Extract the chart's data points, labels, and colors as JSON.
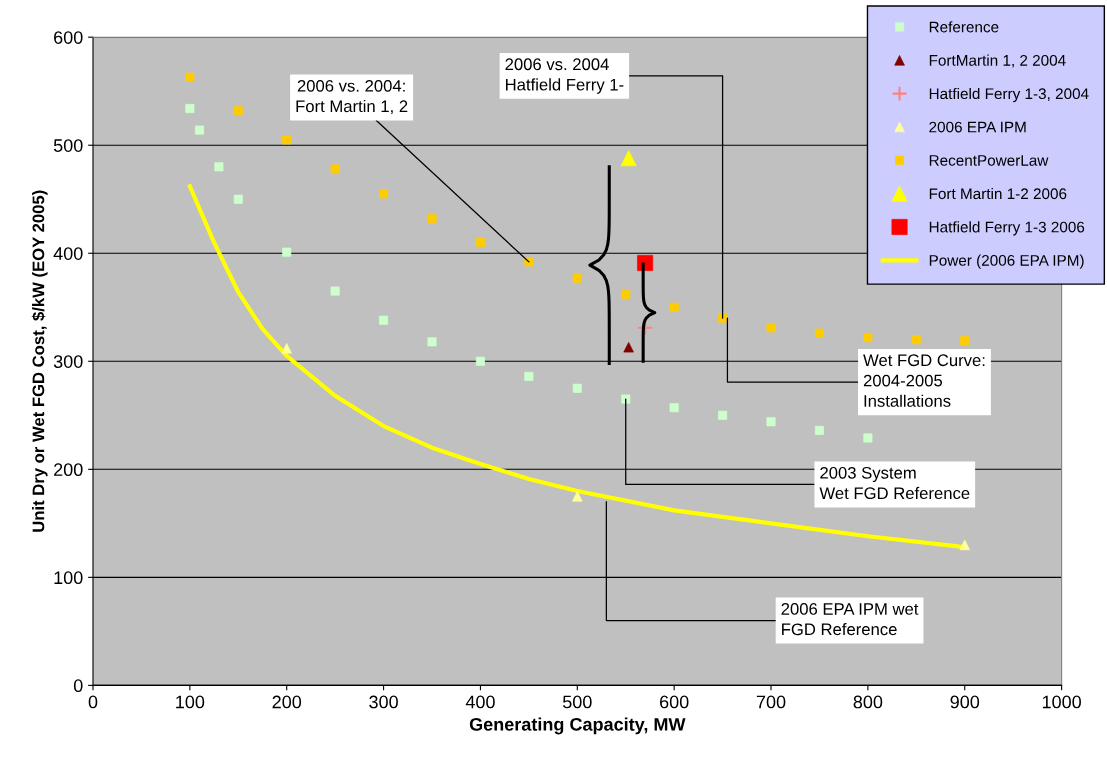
{
  "chart_data": {
    "type": "scatter",
    "xlabel": "Generating Capacity, MW",
    "ylabel": "Unit Dry or Wet FGD Cost, $/kW (EOY 2005)",
    "xlim": [
      0,
      1000
    ],
    "xticks": [
      0,
      100,
      200,
      300,
      400,
      500,
      600,
      700,
      800,
      900,
      1000
    ],
    "ylim": [
      0,
      600
    ],
    "yticks": [
      0,
      100,
      200,
      300,
      400,
      500,
      600
    ],
    "grid": "y",
    "legend": "top right",
    "series": [
      {
        "name": "Reference",
        "marker": "square",
        "color": "#ccffcc",
        "x": [
          100,
          110,
          130,
          150,
          200,
          250,
          300,
          350,
          400,
          450,
          500,
          550,
          600,
          650,
          700,
          750,
          800
        ],
        "values": [
          534,
          514,
          480,
          450,
          401,
          365,
          338,
          318,
          300,
          286,
          275,
          265,
          257,
          250,
          244,
          236,
          229
        ]
      },
      {
        "name": "FortMartin 1, 2 2004",
        "marker": "triangle",
        "color": "#800000",
        "x": [
          553
        ],
        "values": [
          313
        ]
      },
      {
        "name": "Hatfield Ferry 1-3, 2004",
        "marker": "cross",
        "color": "#ff8080",
        "x": [
          570
        ],
        "values": [
          331
        ]
      },
      {
        "name": "2006 EPA IPM",
        "marker": "triangle",
        "color": "#ffff99",
        "x": [
          200,
          500,
          900
        ],
        "values": [
          312,
          175,
          130
        ]
      },
      {
        "name": "RecentPowerLaw",
        "marker": "square",
        "color": "#ffcc00",
        "x": [
          100,
          150,
          200,
          250,
          300,
          350,
          400,
          450,
          500,
          550,
          600,
          650,
          700,
          750,
          800,
          850,
          900
        ],
        "values": [
          563,
          532,
          505,
          478,
          455,
          432,
          410,
          392,
          377,
          362,
          350,
          340,
          331,
          326,
          322,
          320,
          319
        ]
      },
      {
        "name": "Fort Martin 1-2 2006",
        "marker": "triangle",
        "color": "#ffff00",
        "x": [
          553
        ],
        "values": [
          488
        ]
      },
      {
        "name": "Hatfield Ferry 1-3 2006",
        "marker": "square",
        "color": "#ff0000",
        "x": [
          570
        ],
        "values": [
          391
        ]
      },
      {
        "name": "Power (2006 EPA IPM)",
        "type": "line",
        "marker": "none",
        "line_style": "solid",
        "color": "#ffff00",
        "x": [
          100,
          125,
          150,
          175,
          200,
          250,
          300,
          350,
          400,
          450,
          500,
          600,
          700,
          800,
          900
        ],
        "values": [
          462,
          410,
          364,
          330,
          305,
          268,
          240,
          220,
          205,
          191,
          180,
          162,
          150,
          138,
          128
        ]
      }
    ],
    "annotations": [
      {
        "text": "2006 vs. 2004:\nFort Martin 1, 2",
        "x": 450,
        "y": 392
      },
      {
        "text": "2006 vs. 2004\nHatfield Ferry 1-",
        "x": 650,
        "y": 340
      },
      {
        "text": "Wet FGD Curve:\n2004-2005\nInstallations",
        "x": 655,
        "y": 340
      },
      {
        "text": "2003 System\nWet FGD Reference",
        "x": 550,
        "y": 265
      },
      {
        "text": "2006 EPA IPM wet\nFGD Reference",
        "x": 530,
        "y": 170
      }
    ]
  }
}
